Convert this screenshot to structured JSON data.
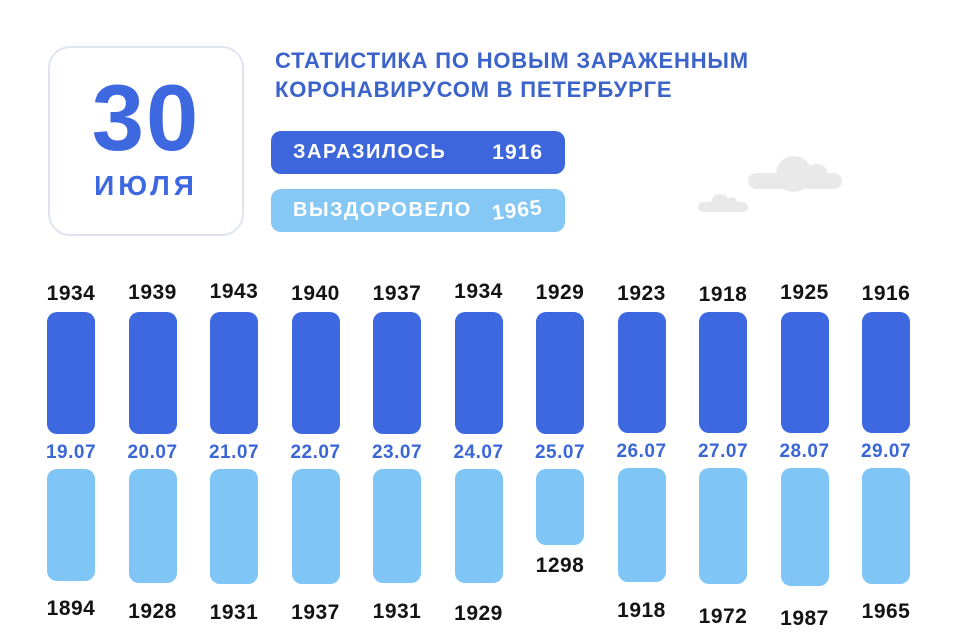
{
  "header": {
    "date_day": "30",
    "date_month": "ИЮЛЯ",
    "title_line1": "СТАТИСТИКА ПО НОВЫМ ЗАРАЖЕННЫМ",
    "title_line2": "КОРОНАВИРУСОМ В ПЕТЕРБУРГЕ",
    "badges": [
      {
        "label": "ЗАРАЗИЛОСЬ",
        "value": "1916"
      },
      {
        "label": "ВЫЗДОРОВЕЛО",
        "value": "1965"
      }
    ]
  },
  "decorations": {
    "clouds": [
      "cloud-large",
      "cloud-small"
    ]
  },
  "colors": {
    "infected_badge_blue": "#3d66dc",
    "recovered_badge_blue": "#85c8f6",
    "bar_dark_blue": "#3e68e0",
    "bar_light_blue": "#7fc6f7",
    "title_blue": "#3c63c9",
    "date_label_blue": "#3a66d6",
    "value_label_black": "#131313",
    "cloud_gray": "#e9e9e9"
  },
  "chart_data": {
    "type": "bar",
    "title": "Статистика по новым зараженным коронавирусом в Петербурге",
    "categories": [
      "19.07",
      "20.07",
      "21.07",
      "22.07",
      "23.07",
      "24.07",
      "25.07",
      "26.07",
      "27.07",
      "28.07",
      "29.07"
    ],
    "series": [
      {
        "name": "Заразилось",
        "color": "#3e68e0",
        "values": [
          1934,
          1939,
          1943,
          1940,
          1937,
          1934,
          1929,
          1923,
          1918,
          1925,
          1916
        ]
      },
      {
        "name": "Выздоровело",
        "color": "#7fc6f7",
        "values": [
          1894,
          1928,
          1931,
          1937,
          1931,
          1929,
          1298,
          1918,
          1972,
          1987,
          1965
        ]
      }
    ],
    "layout": {
      "orientation": "vertical",
      "value_labels": "outside-ends",
      "category_labels": "between-series",
      "grid": false,
      "axes": false,
      "legend": "header-badges"
    }
  }
}
